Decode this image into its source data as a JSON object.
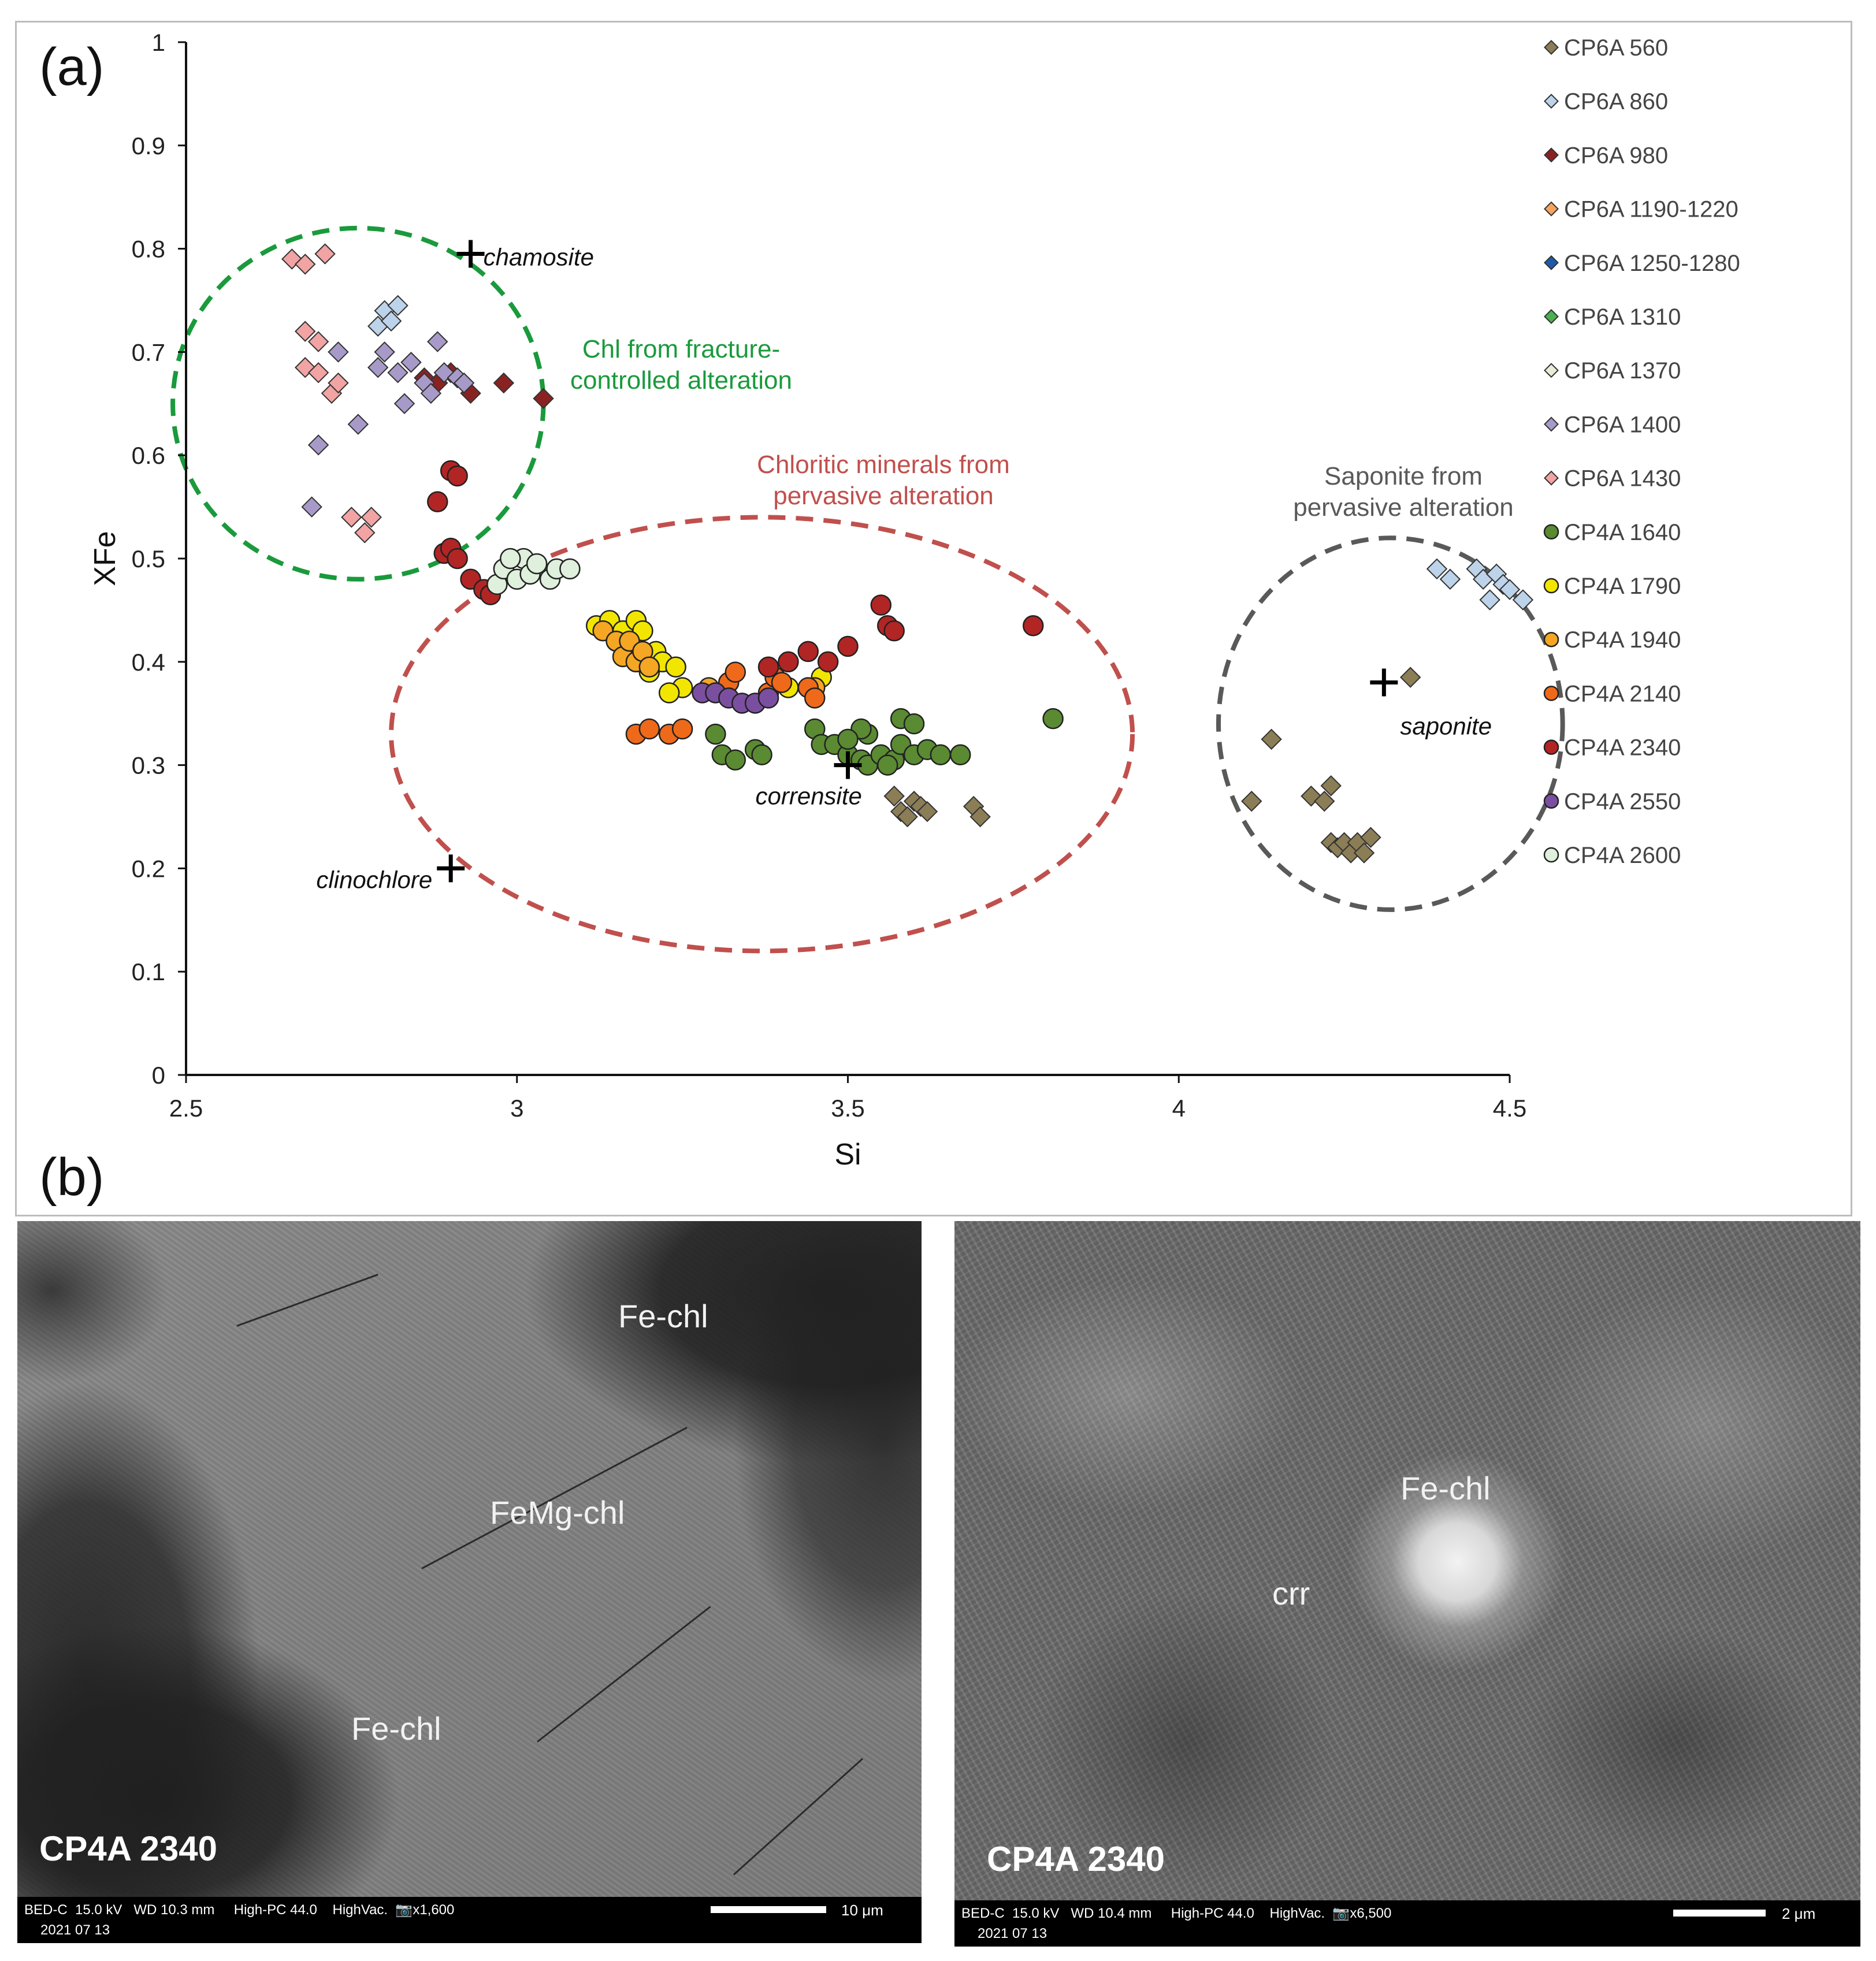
{
  "panel_labels": {
    "a": "(a)",
    "b": "(b)"
  },
  "chart_data": {
    "type": "scatter",
    "title": "",
    "xlabel": "Si",
    "ylabel": "XFe",
    "xlim": [
      2.5,
      4.5
    ],
    "ylim": [
      0,
      1
    ],
    "xticks": [
      "2.5",
      "3",
      "3.5",
      "4",
      "4.5"
    ],
    "yticks": [
      "0",
      "0.1",
      "0.2",
      "0.3",
      "0.4",
      "0.5",
      "0.6",
      "0.7",
      "0.8",
      "0.9",
      "1"
    ],
    "grid": false,
    "legend_position": "right",
    "series": [
      {
        "name": "CP6A 560",
        "marker": "diamond",
        "color": "#8b7d55",
        "points": [
          [
            3.57,
            0.27
          ],
          [
            3.58,
            0.255
          ],
          [
            3.6,
            0.265
          ],
          [
            3.61,
            0.26
          ],
          [
            3.62,
            0.255
          ],
          [
            3.59,
            0.25
          ],
          [
            3.69,
            0.26
          ],
          [
            3.7,
            0.25
          ],
          [
            4.11,
            0.265
          ],
          [
            4.14,
            0.325
          ],
          [
            4.2,
            0.27
          ],
          [
            4.22,
            0.265
          ],
          [
            4.23,
            0.28
          ],
          [
            4.23,
            0.225
          ],
          [
            4.24,
            0.22
          ],
          [
            4.25,
            0.225
          ],
          [
            4.26,
            0.215
          ],
          [
            4.27,
            0.225
          ],
          [
            4.28,
            0.215
          ],
          [
            4.29,
            0.23
          ],
          [
            4.35,
            0.385
          ]
        ]
      },
      {
        "name": "CP6A 860",
        "marker": "diamond",
        "color": "#bcd3ea",
        "points": [
          [
            2.79,
            0.725
          ],
          [
            2.8,
            0.74
          ],
          [
            2.82,
            0.745
          ],
          [
            2.81,
            0.73
          ],
          [
            4.39,
            0.49
          ],
          [
            4.41,
            0.48
          ],
          [
            4.45,
            0.49
          ],
          [
            4.46,
            0.48
          ],
          [
            4.48,
            0.485
          ],
          [
            4.49,
            0.475
          ],
          [
            4.5,
            0.47
          ],
          [
            4.47,
            0.46
          ],
          [
            4.52,
            0.46
          ]
        ]
      },
      {
        "name": "CP6A 980",
        "marker": "diamond",
        "color": "#8b2222",
        "points": [
          [
            2.84,
            0.69
          ],
          [
            2.86,
            0.675
          ],
          [
            2.88,
            0.67
          ],
          [
            2.9,
            0.68
          ],
          [
            2.93,
            0.66
          ],
          [
            2.98,
            0.67
          ],
          [
            3.04,
            0.655
          ]
        ]
      },
      {
        "name": "CP6A 1190-1220",
        "marker": "diamond",
        "color": "#f4a460",
        "points": []
      },
      {
        "name": "CP6A 1250-1280",
        "marker": "diamond",
        "color": "#1f5aa6",
        "points": []
      },
      {
        "name": "CP6A 1310",
        "marker": "diamond",
        "color": "#4caf50",
        "points": []
      },
      {
        "name": "CP6A 1370",
        "marker": "diamond",
        "color": "#e9edd6",
        "points": []
      },
      {
        "name": "CP6A 1400",
        "marker": "diamond",
        "color": "#a89ac8",
        "points": [
          [
            2.7,
            0.61
          ],
          [
            2.73,
            0.7
          ],
          [
            2.76,
            0.63
          ],
          [
            2.79,
            0.685
          ],
          [
            2.8,
            0.7
          ],
          [
            2.82,
            0.68
          ],
          [
            2.83,
            0.65
          ],
          [
            2.84,
            0.69
          ],
          [
            2.86,
            0.67
          ],
          [
            2.87,
            0.66
          ],
          [
            2.88,
            0.71
          ],
          [
            2.89,
            0.68
          ],
          [
            2.91,
            0.675
          ],
          [
            2.92,
            0.67
          ],
          [
            2.69,
            0.55
          ]
        ]
      },
      {
        "name": "CP6A 1430",
        "marker": "diamond",
        "color": "#f2a3a3",
        "points": [
          [
            2.66,
            0.79
          ],
          [
            2.68,
            0.785
          ],
          [
            2.71,
            0.795
          ],
          [
            2.68,
            0.72
          ],
          [
            2.7,
            0.71
          ],
          [
            2.68,
            0.685
          ],
          [
            2.7,
            0.68
          ],
          [
            2.72,
            0.66
          ],
          [
            2.73,
            0.67
          ],
          [
            2.75,
            0.54
          ],
          [
            2.77,
            0.525
          ],
          [
            2.78,
            0.54
          ]
        ]
      },
      {
        "name": "CP4A 1640",
        "marker": "circle",
        "color": "#5a8a32",
        "points": [
          [
            3.3,
            0.33
          ],
          [
            3.31,
            0.31
          ],
          [
            3.33,
            0.305
          ],
          [
            3.36,
            0.315
          ],
          [
            3.37,
            0.31
          ],
          [
            3.45,
            0.335
          ],
          [
            3.46,
            0.32
          ],
          [
            3.48,
            0.32
          ],
          [
            3.5,
            0.31
          ],
          [
            3.52,
            0.305
          ],
          [
            3.53,
            0.3
          ],
          [
            3.55,
            0.31
          ],
          [
            3.57,
            0.305
          ],
          [
            3.58,
            0.32
          ],
          [
            3.6,
            0.31
          ],
          [
            3.62,
            0.315
          ],
          [
            3.53,
            0.33
          ],
          [
            3.58,
            0.345
          ],
          [
            3.6,
            0.34
          ],
          [
            3.64,
            0.31
          ],
          [
            3.67,
            0.31
          ],
          [
            3.52,
            0.335
          ],
          [
            3.5,
            0.325
          ],
          [
            3.56,
            0.3
          ],
          [
            3.81,
            0.345
          ]
        ]
      },
      {
        "name": "CP4A 1790",
        "marker": "circle",
        "color": "#f2e600",
        "points": [
          [
            3.12,
            0.435
          ],
          [
            3.14,
            0.44
          ],
          [
            3.16,
            0.43
          ],
          [
            3.18,
            0.44
          ],
          [
            3.19,
            0.43
          ],
          [
            3.21,
            0.41
          ],
          [
            3.22,
            0.4
          ],
          [
            3.24,
            0.395
          ],
          [
            3.25,
            0.375
          ],
          [
            3.15,
            0.42
          ],
          [
            3.17,
            0.41
          ],
          [
            3.2,
            0.39
          ],
          [
            3.23,
            0.37
          ],
          [
            3.32,
            0.38
          ],
          [
            3.41,
            0.375
          ],
          [
            3.46,
            0.385
          ]
        ]
      },
      {
        "name": "CP4A 1940",
        "marker": "circle",
        "color": "#f5a623",
        "points": [
          [
            3.13,
            0.43
          ],
          [
            3.15,
            0.42
          ],
          [
            3.16,
            0.405
          ],
          [
            3.17,
            0.42
          ],
          [
            3.18,
            0.4
          ],
          [
            3.19,
            0.41
          ],
          [
            3.2,
            0.395
          ],
          [
            3.29,
            0.375
          ],
          [
            3.45,
            0.375
          ]
        ]
      },
      {
        "name": "CP4A 2140",
        "marker": "circle",
        "color": "#ee6a1a",
        "points": [
          [
            3.18,
            0.33
          ],
          [
            3.2,
            0.335
          ],
          [
            3.23,
            0.33
          ],
          [
            3.25,
            0.335
          ],
          [
            3.32,
            0.38
          ],
          [
            3.33,
            0.39
          ],
          [
            3.38,
            0.37
          ],
          [
            3.39,
            0.385
          ],
          [
            3.4,
            0.38
          ],
          [
            3.44,
            0.375
          ],
          [
            3.45,
            0.365
          ]
        ]
      },
      {
        "name": "CP4A 2340",
        "marker": "circle",
        "color": "#b22525",
        "points": [
          [
            2.88,
            0.555
          ],
          [
            2.9,
            0.585
          ],
          [
            2.91,
            0.58
          ],
          [
            2.89,
            0.505
          ],
          [
            2.9,
            0.51
          ],
          [
            2.91,
            0.5
          ],
          [
            2.93,
            0.48
          ],
          [
            2.95,
            0.47
          ],
          [
            2.96,
            0.465
          ],
          [
            3.38,
            0.395
          ],
          [
            3.41,
            0.4
          ],
          [
            3.44,
            0.41
          ],
          [
            3.47,
            0.4
          ],
          [
            3.5,
            0.415
          ],
          [
            3.55,
            0.455
          ],
          [
            3.56,
            0.435
          ],
          [
            3.57,
            0.43
          ],
          [
            3.78,
            0.435
          ]
        ]
      },
      {
        "name": "CP4A 2550",
        "marker": "circle",
        "color": "#7b4fa0",
        "points": [
          [
            3.28,
            0.37
          ],
          [
            3.3,
            0.37
          ],
          [
            3.32,
            0.365
          ],
          [
            3.34,
            0.36
          ],
          [
            3.36,
            0.36
          ],
          [
            3.38,
            0.365
          ]
        ]
      },
      {
        "name": "CP4A 2600",
        "marker": "circle",
        "color": "#dff0dc",
        "points": [
          [
            2.97,
            0.475
          ],
          [
            2.98,
            0.49
          ],
          [
            3.0,
            0.48
          ],
          [
            3.01,
            0.5
          ],
          [
            3.02,
            0.485
          ],
          [
            3.03,
            0.495
          ],
          [
            3.05,
            0.48
          ],
          [
            3.06,
            0.49
          ],
          [
            3.08,
            0.49
          ],
          [
            2.99,
            0.5
          ]
        ]
      }
    ],
    "references": [
      {
        "label": "chamosite",
        "x": 2.93,
        "y": 0.795
      },
      {
        "label": "clinochlore",
        "x": 2.9,
        "y": 0.2
      },
      {
        "label": "corrensite",
        "x": 3.5,
        "y": 0.3
      },
      {
        "label": "saponite",
        "x": 4.31,
        "y": 0.38
      }
    ],
    "regions": [
      {
        "label_lines": [
          "Chl from fracture-",
          "controlled alteration"
        ],
        "color": "#1a9a3c",
        "cx": 2.76,
        "cy": 0.65,
        "rx": 0.28,
        "ry": 0.17
      },
      {
        "label_lines": [
          "Chloritic minerals from",
          "pervasive alteration"
        ],
        "color": "#c0504d",
        "cx": 3.37,
        "cy": 0.33,
        "rx": 0.56,
        "ry": 0.21
      },
      {
        "label_lines": [
          "Saponite from",
          "pervasive alteration"
        ],
        "color": "#595959",
        "cx": 4.32,
        "cy": 0.34,
        "rx": 0.26,
        "ry": 0.18
      }
    ]
  },
  "sem_images": [
    {
      "sample": "CP4A 2340",
      "labels": [
        "Fe-chl",
        "FeMg-chl",
        "Fe-chl"
      ],
      "info": "BED-C  15.0 kV   WD 10.3 mm     High-PC 44.0    HighVac.  📷x1,600",
      "date": "2021 07 13",
      "scale": "10 μm"
    },
    {
      "sample": "CP4A 2340",
      "labels": [
        "Fe-chl",
        "crr"
      ],
      "info": "BED-C  15.0 kV   WD 10.4 mm     High-PC 44.0    HighVac.  📷x6,500",
      "date": "2021 07 13",
      "scale": "2 μm"
    }
  ]
}
